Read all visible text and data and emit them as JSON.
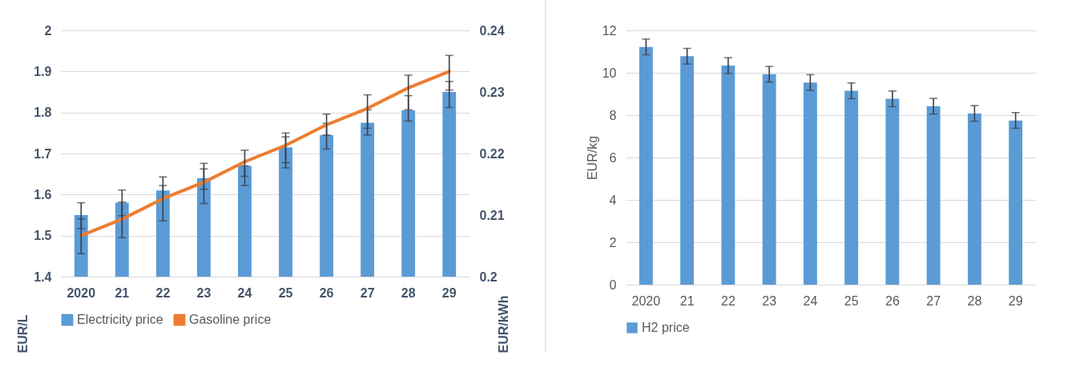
{
  "chart_data": [
    {
      "type": "bar",
      "categories": [
        "2020",
        "21",
        "22",
        "23",
        "24",
        "25",
        "26",
        "27",
        "28",
        "29"
      ],
      "ylabel": "EUR/L",
      "y2label": "EUR/kWh",
      "ylim": [
        1.4,
        2
      ],
      "yticks": [
        1.4,
        1.5,
        1.6,
        1.7,
        1.8,
        1.9,
        2
      ],
      "y2lim": [
        0.2,
        0.24
      ],
      "y2ticks": [
        0.2,
        0.21,
        0.22,
        0.23,
        0.24
      ],
      "grid": "y",
      "legend": "bottom",
      "series": [
        {
          "name": "Electricity price",
          "axis": "y2",
          "color": "#5b9bd5",
          "values": [
            0.21,
            0.212,
            0.214,
            0.216,
            0.218,
            0.221,
            0.223,
            0.225,
            0.227,
            0.23
          ],
          "errors": [
            [
              0.2078,
              0.2094
            ],
            [
              0.2099,
              0.2121
            ],
            [
              0.2127,
              0.2148
            ],
            [
              0.2142,
              0.2175
            ],
            [
              0.2163,
              0.218
            ],
            [
              0.2185,
              0.2227
            ],
            [
              0.223,
              0.2249
            ],
            [
              0.2241,
              0.2271
            ],
            [
              0.2271,
              0.2294
            ],
            [
              0.2303,
              0.2317
            ]
          ]
        },
        {
          "name": "Gasoline price",
          "type": "line",
          "color": "#ed7d31",
          "values": [
            1.5,
            1.54,
            1.59,
            1.63,
            1.68,
            1.72,
            1.77,
            1.81,
            1.86,
            1.9
          ],
          "errors": [
            [
              1.456,
              1.58
            ],
            [
              1.495,
              1.611
            ],
            [
              1.536,
              1.643
            ],
            [
              1.578,
              1.676
            ],
            [
              1.622,
              1.708
            ],
            [
              1.665,
              1.75
            ],
            [
              1.711,
              1.796
            ],
            [
              1.745,
              1.843
            ],
            [
              1.779,
              1.891
            ],
            [
              1.812,
              1.939
            ]
          ]
        }
      ]
    },
    {
      "type": "bar",
      "categories": [
        "2020",
        "21",
        "22",
        "23",
        "24",
        "25",
        "26",
        "27",
        "28",
        "29"
      ],
      "ylabel": "EUR/kg",
      "ylim": [
        0,
        12
      ],
      "yticks": [
        0,
        2,
        4,
        6,
        8,
        10,
        12
      ],
      "grid": "y",
      "legend": "bottom",
      "series": [
        {
          "name": "H2 price",
          "color": "#5b9bd5",
          "values": [
            11.22,
            10.78,
            10.34,
            9.93,
            9.54,
            9.15,
            8.77,
            8.42,
            8.08,
            7.75
          ],
          "errors": [
            0.37,
            0.37,
            0.37,
            0.37,
            0.37,
            0.37,
            0.37,
            0.37,
            0.37,
            0.37
          ]
        }
      ]
    }
  ]
}
